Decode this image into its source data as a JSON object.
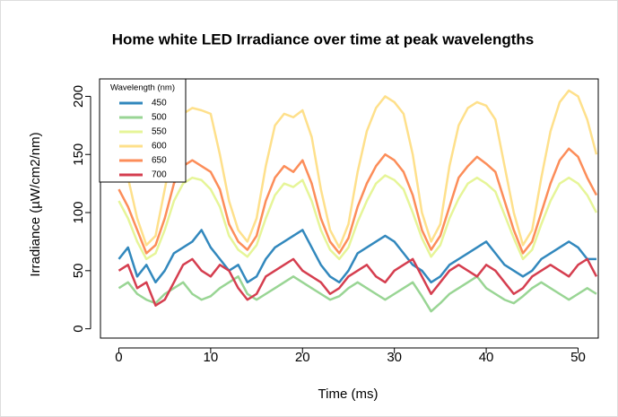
{
  "chart_data": {
    "type": "line",
    "title": "Home white LED Irradiance over time at peak wavelengths",
    "xlabel": "Time (ms)",
    "ylabel": "Irradiance (µW/cm2/nm)",
    "legend_title": "Wavelength (nm)",
    "legend": "top-left",
    "x": [
      0,
      1,
      2,
      3,
      4,
      5,
      6,
      7,
      8,
      9,
      10,
      11,
      12,
      13,
      14,
      15,
      16,
      17,
      18,
      19,
      20,
      21,
      22,
      23,
      24,
      25,
      26,
      27,
      28,
      29,
      30,
      31,
      32,
      33,
      34,
      35,
      36,
      37,
      38,
      39,
      40,
      41,
      42,
      43,
      44,
      45,
      46,
      47,
      48,
      49,
      50,
      51,
      52
    ],
    "xlim": [
      -2,
      52.2
    ],
    "xticks": [
      0,
      10,
      20,
      30,
      40,
      50
    ],
    "ylim": [
      -8,
      215
    ],
    "yticks": [
      0,
      50,
      100,
      150,
      200
    ],
    "series": [
      {
        "name": "450",
        "color": "#3288bd",
        "values": [
          60,
          70,
          45,
          55,
          40,
          50,
          65,
          70,
          75,
          85,
          70,
          60,
          50,
          55,
          40,
          45,
          60,
          70,
          75,
          80,
          85,
          70,
          55,
          45,
          40,
          50,
          65,
          70,
          75,
          80,
          75,
          65,
          55,
          50,
          40,
          45,
          55,
          60,
          65,
          70,
          75,
          65,
          55,
          50,
          45,
          50,
          60,
          65,
          70,
          75,
          70,
          60,
          60
        ]
      },
      {
        "name": "500",
        "color": "#99d594",
        "values": [
          35,
          40,
          30,
          25,
          22,
          30,
          35,
          40,
          30,
          25,
          28,
          35,
          40,
          45,
          30,
          25,
          30,
          35,
          40,
          45,
          40,
          35,
          30,
          25,
          28,
          35,
          40,
          35,
          30,
          25,
          30,
          35,
          40,
          28,
          15,
          22,
          30,
          35,
          40,
          45,
          35,
          30,
          25,
          22,
          28,
          35,
          40,
          35,
          30,
          25,
          30,
          35,
          30
        ]
      },
      {
        "name": "550",
        "color": "#e6f598",
        "values": [
          110,
          95,
          75,
          60,
          65,
          85,
          110,
          125,
          130,
          128,
          120,
          105,
          80,
          68,
          62,
          72,
          95,
          115,
          125,
          122,
          128,
          110,
          85,
          68,
          60,
          70,
          92,
          110,
          125,
          132,
          128,
          120,
          100,
          78,
          62,
          72,
          95,
          112,
          125,
          130,
          125,
          118,
          98,
          78,
          60,
          68,
          90,
          110,
          125,
          130,
          125,
          115,
          100
        ]
      },
      {
        "name": "600",
        "color": "#fee08b",
        "values": [
          150,
          130,
          95,
          72,
          80,
          120,
          160,
          185,
          190,
          188,
          185,
          150,
          110,
          85,
          75,
          95,
          140,
          175,
          185,
          182,
          188,
          165,
          120,
          85,
          70,
          90,
          135,
          170,
          190,
          200,
          195,
          185,
          150,
          100,
          75,
          90,
          140,
          175,
          190,
          195,
          192,
          180,
          140,
          100,
          72,
          85,
          130,
          170,
          195,
          205,
          200,
          180,
          150
        ]
      },
      {
        "name": "650",
        "color": "#fc8d59",
        "values": [
          120,
          105,
          85,
          65,
          72,
          95,
          125,
          140,
          145,
          140,
          135,
          120,
          90,
          75,
          68,
          80,
          110,
          130,
          140,
          135,
          145,
          125,
          95,
          75,
          65,
          78,
          105,
          125,
          140,
          150,
          145,
          135,
          115,
          85,
          68,
          80,
          105,
          130,
          140,
          148,
          142,
          135,
          110,
          85,
          65,
          75,
          100,
          125,
          145,
          155,
          148,
          130,
          115
        ]
      },
      {
        "name": "700",
        "color": "#d53e4f",
        "values": [
          50,
          55,
          35,
          40,
          20,
          25,
          40,
          55,
          60,
          50,
          45,
          55,
          50,
          35,
          25,
          30,
          45,
          50,
          55,
          60,
          50,
          45,
          40,
          30,
          35,
          45,
          50,
          55,
          45,
          40,
          50,
          55,
          60,
          45,
          30,
          40,
          50,
          55,
          50,
          45,
          55,
          50,
          40,
          30,
          35,
          45,
          50,
          55,
          50,
          45,
          55,
          60,
          45
        ]
      }
    ]
  }
}
